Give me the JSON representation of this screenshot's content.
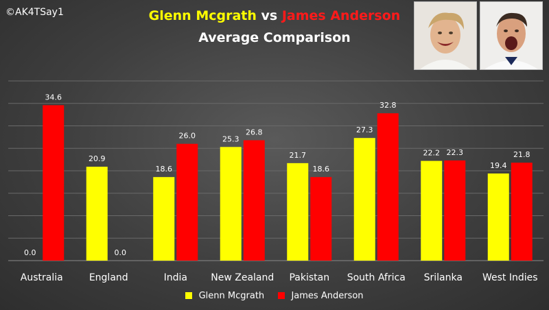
{
  "watermark": "©AK4TSay1",
  "title": {
    "player1": "Glenn Mcgrath",
    "vs": "vs",
    "player2": "James Anderson",
    "subtitle": "Average Comparison"
  },
  "chart_data": {
    "type": "bar",
    "categories": [
      "Australia",
      "England",
      "India",
      "New Zealand",
      "Pakistan",
      "South Africa",
      "Srilanka",
      "West Indies"
    ],
    "series": [
      {
        "name": "Glenn Mcgrath",
        "color": "#ffff00",
        "values": [
          0.0,
          20.9,
          18.6,
          25.3,
          21.7,
          27.3,
          22.2,
          19.4
        ]
      },
      {
        "name": "James Anderson",
        "color": "#ff0000",
        "values": [
          34.6,
          0.0,
          26.0,
          26.8,
          18.6,
          32.8,
          22.3,
          21.8
        ]
      }
    ],
    "value_labels": [
      [
        "0.0",
        "20.9",
        "18.6",
        "25.3",
        "21.7",
        "27.3",
        "22.2",
        "19.4"
      ],
      [
        "34.6",
        "0.0",
        "26.0",
        "26.8",
        "18.6",
        "32.8",
        "22.3",
        "21.8"
      ]
    ],
    "ylim": [
      0,
      40
    ],
    "grid": true,
    "legend": "bottom"
  }
}
